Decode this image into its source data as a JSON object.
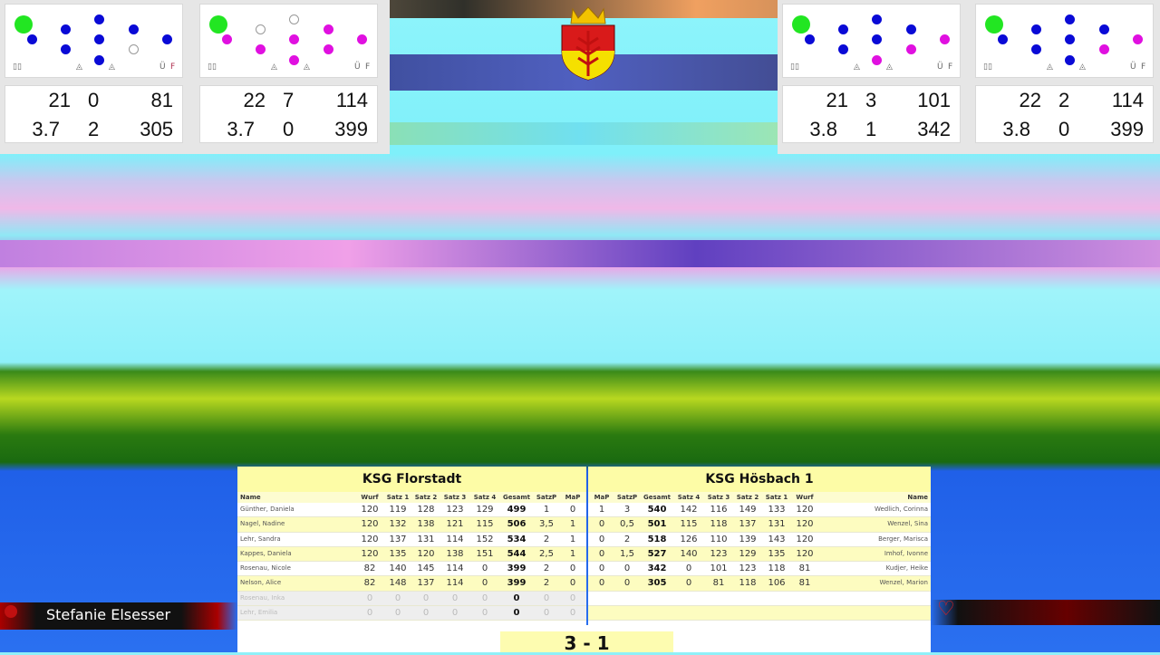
{
  "colors": {
    "hit": "#0a0ad6",
    "hit_alt": "#e010e0",
    "standing": "#ffffff",
    "ball": "#22e622",
    "table_header": "#fdfca6"
  },
  "lanes": [
    {
      "pins": [
        "hit",
        "hit",
        "hit",
        "hit",
        "hit",
        "hit",
        "hit",
        "standing",
        "hit"
      ],
      "pin_color": "#0a0ad6",
      "footer": {
        "left": "▯▯",
        "marks": [
          "◬",
          "◬"
        ],
        "u": "Ü",
        "f": "F"
      },
      "wurf": "21",
      "avg": "3.7",
      "wert": "0",
      "fehl": "2",
      "satz": "81",
      "gesamt": "305"
    },
    {
      "pins": [
        "standing",
        "standing",
        "hit",
        "hit",
        "hit",
        "hit",
        "hit",
        "hit",
        "hit"
      ],
      "pin_color": "#e010e0",
      "footer": {
        "left": "▯▯",
        "marks": [
          "◬",
          "◬"
        ],
        "u": "Ü",
        "f": "F"
      },
      "wurf": "22",
      "avg": "3.7",
      "wert": "7",
      "fehl": "0",
      "satz": "114",
      "gesamt": "399"
    },
    {
      "pins": [
        "hit",
        "hit",
        "hit",
        "hit",
        "hit",
        "alt",
        "hit",
        "alt",
        "alt"
      ],
      "pin_color": "#0a0ad6",
      "footer": {
        "left": "▯▯",
        "marks": [
          "◬",
          "◬"
        ],
        "u": "Ü",
        "f": "F"
      },
      "wurf": "21",
      "avg": "3.8",
      "wert": "3",
      "fehl": "1",
      "satz": "101",
      "gesamt": "342"
    },
    {
      "pins": [
        "hit",
        "hit",
        "hit",
        "hit",
        "hit",
        "alt",
        "hit",
        "alt",
        "hit"
      ],
      "pin_color": "#0a0ad6",
      "footer": {
        "left": "▯▯",
        "marks": [
          "◬",
          "◬"
        ],
        "u": "Ü",
        "f": "F"
      },
      "wurf": "22",
      "avg": "3.8",
      "wert": "2",
      "fehl": "0",
      "satz": "114",
      "gesamt": "399"
    }
  ],
  "home": {
    "team": "KSG Florstadt",
    "columns": [
      "Name",
      "Wurf",
      "Satz 1",
      "Satz 2",
      "Satz 3",
      "Satz 4",
      "Gesamt",
      "SatzP",
      "MaP"
    ],
    "rows": [
      [
        "Günther, Daniela",
        "120",
        "119",
        "128",
        "123",
        "129",
        "499",
        "1",
        "0"
      ],
      [
        "Nagel, Nadine",
        "120",
        "132",
        "138",
        "121",
        "115",
        "506",
        "3,5",
        "1"
      ],
      [
        "Lehr, Sandra",
        "120",
        "137",
        "131",
        "114",
        "152",
        "534",
        "2",
        "1"
      ],
      [
        "Kappes, Daniela",
        "120",
        "135",
        "120",
        "138",
        "151",
        "544",
        "2,5",
        "1"
      ],
      [
        "Rosenau, Nicole",
        "82",
        "140",
        "145",
        "114",
        "0",
        "399",
        "2",
        "0"
      ],
      [
        "Nelson, Alice",
        "82",
        "148",
        "137",
        "114",
        "0",
        "399",
        "2",
        "0"
      ],
      [
        "Rosenau, Inka",
        "0",
        "0",
        "0",
        "0",
        "0",
        "0",
        "0",
        "0"
      ],
      [
        "Lehr, Emilia",
        "0",
        "0",
        "0",
        "0",
        "0",
        "0",
        "0",
        "0"
      ]
    ]
  },
  "guest": {
    "team": "KSG Hösbach 1",
    "columns": [
      "MaP",
      "SatzP",
      "Gesamt",
      "Satz 4",
      "Satz 3",
      "Satz 2",
      "Satz 1",
      "Wurf",
      "Name"
    ],
    "rows": [
      [
        "1",
        "3",
        "540",
        "142",
        "116",
        "149",
        "133",
        "120",
        "Wedlich, Corinna"
      ],
      [
        "0",
        "0,5",
        "501",
        "115",
        "118",
        "137",
        "131",
        "120",
        "Wenzel, Sina"
      ],
      [
        "0",
        "2",
        "518",
        "126",
        "110",
        "139",
        "143",
        "120",
        "Berger, Marisca"
      ],
      [
        "0",
        "1,5",
        "527",
        "140",
        "123",
        "129",
        "135",
        "120",
        "Imhof, Ivonne"
      ],
      [
        "0",
        "0",
        "342",
        "0",
        "101",
        "123",
        "118",
        "81",
        "Kudjer, Heike"
      ],
      [
        "0",
        "0",
        "305",
        "0",
        "81",
        "118",
        "106",
        "81",
        "Wenzel, Marion"
      ],
      [
        "",
        "",
        "",
        "",
        "",
        "",
        "",
        "",
        ""
      ],
      [
        "",
        "",
        "",
        "",
        "",
        "",
        "",
        "",
        ""
      ]
    ]
  },
  "score": "3 - 1",
  "current_player": "Stefanie Elsesser"
}
